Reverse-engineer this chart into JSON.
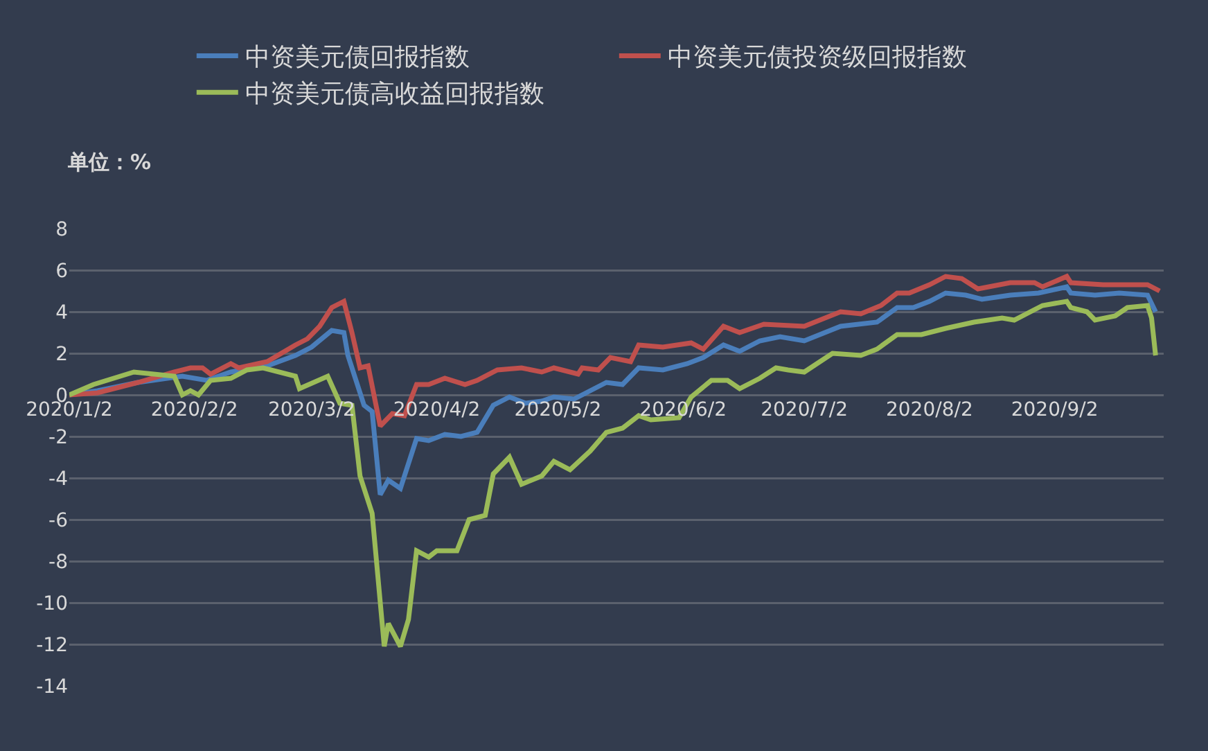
{
  "chart_data": {
    "type": "line",
    "ylabel": "单位：%",
    "legend": "top",
    "grid": "y",
    "marker": "none",
    "line_style": "solid",
    "xlim": [
      "2020-01-02",
      "2020-09-29"
    ],
    "xticks": [
      {
        "value": "2020-01-02",
        "label": "2020/1/2"
      },
      {
        "value": "2020-02-02",
        "label": "2020/2/2"
      },
      {
        "value": "2020-03-02",
        "label": "2020/3/2"
      },
      {
        "value": "2020-04-02",
        "label": "2020/4/2"
      },
      {
        "value": "2020-05-02",
        "label": "2020/5/2"
      },
      {
        "value": "2020-06-02",
        "label": "2020/6/2"
      },
      {
        "value": "2020-07-02",
        "label": "2020/7/2"
      },
      {
        "value": "2020-08-02",
        "label": "2020/8/2"
      },
      {
        "value": "2020-09-02",
        "label": "2020/9/2"
      }
    ],
    "ylim": [
      -14,
      8
    ],
    "yticks": [
      8,
      6,
      4,
      2,
      0,
      -2,
      -4,
      -6,
      -8,
      -10,
      -12,
      -14
    ],
    "series": [
      {
        "name": "中资美元债回报指数",
        "color": "#4a7ebb",
        "x": [
          "2020-01-02",
          "2020-01-09",
          "2020-01-19",
          "2020-01-30",
          "2020-02-05",
          "2020-02-11",
          "2020-02-20",
          "2020-02-27",
          "2020-03-02",
          "2020-03-07",
          "2020-03-10",
          "2020-03-11",
          "2020-03-15",
          "2020-03-17",
          "2020-03-19",
          "2020-03-21",
          "2020-03-24",
          "2020-03-28",
          "2020-03-31",
          "2020-04-04",
          "2020-04-08",
          "2020-04-12",
          "2020-04-16",
          "2020-04-20",
          "2020-04-24",
          "2020-04-28",
          "2020-05-01",
          "2020-05-06",
          "2020-05-10",
          "2020-05-14",
          "2020-05-18",
          "2020-05-22",
          "2020-05-28",
          "2020-06-03",
          "2020-06-07",
          "2020-06-12",
          "2020-06-16",
          "2020-06-21",
          "2020-06-26",
          "2020-07-02",
          "2020-07-11",
          "2020-07-20",
          "2020-07-25",
          "2020-07-29",
          "2020-08-02",
          "2020-08-06",
          "2020-08-11",
          "2020-08-15",
          "2020-08-22",
          "2020-08-29",
          "2020-09-05",
          "2020-09-06",
          "2020-09-12",
          "2020-09-18",
          "2020-09-25",
          "2020-09-27"
        ],
        "values": [
          0,
          0.2,
          0.6,
          0.9,
          0.7,
          1.1,
          1.4,
          1.9,
          2.3,
          3.1,
          3.0,
          1.9,
          -0.5,
          -0.8,
          -4.8,
          -4.1,
          -4.5,
          -2.1,
          -2.2,
          -1.9,
          -2.0,
          -1.8,
          -0.5,
          -0.1,
          -0.4,
          -0.3,
          -0.1,
          -0.2,
          0.2,
          0.6,
          0.5,
          1.3,
          1.2,
          1.5,
          1.8,
          2.4,
          2.1,
          2.6,
          2.8,
          2.6,
          3.3,
          3.5,
          4.2,
          4.2,
          4.5,
          4.9,
          4.8,
          4.6,
          4.8,
          4.9,
          5.2,
          4.9,
          4.8,
          4.9,
          4.8,
          4.0
        ]
      },
      {
        "name": "中资美元债投资级回报指数",
        "color": "#c0504d",
        "x": [
          "2020-01-02",
          "2020-01-09",
          "2020-01-19",
          "2020-01-28",
          "2020-02-01",
          "2020-02-04",
          "2020-02-06",
          "2020-02-11",
          "2020-02-13",
          "2020-02-20",
          "2020-02-27",
          "2020-03-01",
          "2020-03-04",
          "2020-03-07",
          "2020-03-10",
          "2020-03-12",
          "2020-03-14",
          "2020-03-16",
          "2020-03-19",
          "2020-03-22",
          "2020-03-25",
          "2020-03-28",
          "2020-03-31",
          "2020-04-04",
          "2020-04-09",
          "2020-04-12",
          "2020-04-17",
          "2020-04-23",
          "2020-04-28",
          "2020-05-01",
          "2020-05-07",
          "2020-05-08",
          "2020-05-12",
          "2020-05-15",
          "2020-05-20",
          "2020-05-22",
          "2020-05-28",
          "2020-06-04",
          "2020-06-07",
          "2020-06-12",
          "2020-06-16",
          "2020-06-22",
          "2020-07-02",
          "2020-07-11",
          "2020-07-16",
          "2020-07-21",
          "2020-07-25",
          "2020-07-28",
          "2020-08-02",
          "2020-08-06",
          "2020-08-10",
          "2020-08-14",
          "2020-08-22",
          "2020-08-28",
          "2020-08-30",
          "2020-09-05",
          "2020-09-06",
          "2020-09-14",
          "2020-09-20",
          "2020-09-25",
          "2020-09-28"
        ],
        "values": [
          0,
          0.1,
          0.6,
          1.1,
          1.3,
          1.3,
          1.0,
          1.5,
          1.3,
          1.6,
          2.4,
          2.7,
          3.3,
          4.2,
          4.5,
          3.0,
          1.3,
          1.4,
          -1.5,
          -0.9,
          -1.0,
          0.5,
          0.5,
          0.8,
          0.5,
          0.7,
          1.2,
          1.3,
          1.1,
          1.3,
          1.0,
          1.3,
          1.2,
          1.8,
          1.6,
          2.4,
          2.3,
          2.5,
          2.2,
          3.3,
          3.0,
          3.4,
          3.3,
          4.0,
          3.9,
          4.3,
          4.9,
          4.9,
          5.3,
          5.7,
          5.6,
          5.1,
          5.4,
          5.4,
          5.2,
          5.7,
          5.4,
          5.3,
          5.3,
          5.3,
          5.0
        ]
      },
      {
        "name": "中资美元债高收益回报指数",
        "color": "#9bbb59",
        "x": [
          "2020-01-02",
          "2020-01-08",
          "2020-01-18",
          "2020-01-28",
          "2020-01-30",
          "2020-02-01",
          "2020-02-03",
          "2020-02-06",
          "2020-02-11",
          "2020-02-15",
          "2020-02-19",
          "2020-02-27",
          "2020-02-28",
          "2020-03-06",
          "2020-03-09",
          "2020-03-12",
          "2020-03-14",
          "2020-03-17",
          "2020-03-20",
          "2020-03-21",
          "2020-03-24",
          "2020-03-26",
          "2020-03-28",
          "2020-03-31",
          "2020-04-02",
          "2020-04-07",
          "2020-04-10",
          "2020-04-14",
          "2020-04-16",
          "2020-04-20",
          "2020-04-23",
          "2020-04-28",
          "2020-05-01",
          "2020-05-05",
          "2020-05-10",
          "2020-05-14",
          "2020-05-18",
          "2020-05-22",
          "2020-05-25",
          "2020-06-01",
          "2020-06-04",
          "2020-06-09",
          "2020-06-13",
          "2020-06-16",
          "2020-06-21",
          "2020-06-25",
          "2020-06-28",
          "2020-07-02",
          "2020-07-09",
          "2020-07-16",
          "2020-07-20",
          "2020-07-25",
          "2020-07-31",
          "2020-08-06",
          "2020-08-13",
          "2020-08-20",
          "2020-08-23",
          "2020-08-30",
          "2020-09-05",
          "2020-09-06",
          "2020-09-10",
          "2020-09-12",
          "2020-09-17",
          "2020-09-20",
          "2020-09-25",
          "2020-09-26",
          "2020-09-27"
        ],
        "values": [
          0,
          0.5,
          1.1,
          0.9,
          0.0,
          0.2,
          0.0,
          0.7,
          0.8,
          1.2,
          1.3,
          0.9,
          0.3,
          0.9,
          -0.4,
          -0.5,
          -3.9,
          -5.7,
          -12.1,
          -11.0,
          -12.1,
          -10.8,
          -7.5,
          -7.8,
          -7.5,
          -7.5,
          -6.0,
          -5.8,
          -3.8,
          -3.0,
          -4.3,
          -3.9,
          -3.2,
          -3.6,
          -2.7,
          -1.8,
          -1.6,
          -1.0,
          -1.2,
          -1.1,
          -0.1,
          0.7,
          0.7,
          0.3,
          0.8,
          1.3,
          1.2,
          1.1,
          2.0,
          1.9,
          2.2,
          2.9,
          2.9,
          3.2,
          3.5,
          3.7,
          3.6,
          4.3,
          4.5,
          4.2,
          4.0,
          3.6,
          3.8,
          4.2,
          4.3,
          3.7,
          1.9
        ]
      }
    ]
  }
}
